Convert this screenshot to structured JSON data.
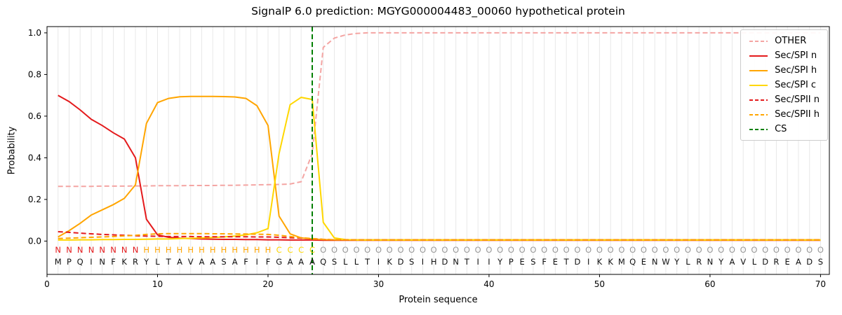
{
  "chart_data": {
    "type": "line",
    "title": "SignalP 6.0 prediction: MGYG000004483_00060 hypothetical protein",
    "xlabel": "Protein sequence",
    "ylabel": "Probability",
    "xlim": [
      0,
      70.8
    ],
    "ylim": [
      -0.16,
      1.03
    ],
    "xticks": [
      0,
      10,
      20,
      30,
      40,
      50,
      60,
      70
    ],
    "yticks": [
      0.0,
      0.2,
      0.4,
      0.6,
      0.8,
      1.0
    ],
    "grid": "vertical-line-per-residue",
    "legend_position": "upper-right",
    "x": [
      1,
      2,
      3,
      4,
      5,
      6,
      7,
      8,
      9,
      10,
      11,
      12,
      13,
      14,
      15,
      16,
      17,
      18,
      19,
      20,
      21,
      22,
      23,
      24,
      25,
      26,
      27,
      28,
      29,
      30,
      31,
      32,
      33,
      34,
      35,
      36,
      37,
      38,
      39,
      40,
      41,
      42,
      43,
      44,
      45,
      46,
      47,
      48,
      49,
      50,
      51,
      52,
      53,
      54,
      55,
      56,
      57,
      58,
      59,
      60,
      61,
      62,
      63,
      64,
      65,
      66,
      67,
      68,
      69,
      70
    ],
    "series": [
      {
        "name": "OTHER",
        "color": "#f4a5a3",
        "style": "dashed",
        "values": [
          0.263,
          0.263,
          0.263,
          0.263,
          0.264,
          0.264,
          0.264,
          0.265,
          0.265,
          0.266,
          0.266,
          0.266,
          0.267,
          0.267,
          0.267,
          0.268,
          0.268,
          0.269,
          0.27,
          0.271,
          0.272,
          0.274,
          0.285,
          0.42,
          0.93,
          0.975,
          0.99,
          0.997,
          1.0,
          1.0,
          1.0,
          1.0,
          1.0,
          1.0,
          1.0,
          1.0,
          1.0,
          1.0,
          1.0,
          1.0,
          1.0,
          1.0,
          1.0,
          1.0,
          1.0,
          1.0,
          1.0,
          1.0,
          1.0,
          1.0,
          1.0,
          1.0,
          1.0,
          1.0,
          1.0,
          1.0,
          1.0,
          1.0,
          1.0,
          1.0,
          1.0,
          1.0,
          1.0,
          1.0,
          1.0,
          1.0,
          1.0,
          1.0,
          1.0,
          1.0
        ]
      },
      {
        "name": "Sec/SPI n",
        "color": "#e41a1c",
        "style": "solid",
        "values": [
          0.7,
          0.67,
          0.63,
          0.585,
          0.555,
          0.52,
          0.49,
          0.4,
          0.105,
          0.03,
          0.018,
          0.014,
          0.012,
          0.01,
          0.009,
          0.008,
          0.008,
          0.007,
          0.007,
          0.006,
          0.006,
          0.005,
          0.005,
          0.005,
          0.004,
          0.004,
          0.004,
          0.004,
          0.004,
          0.004,
          0.004,
          0.004,
          0.004,
          0.004,
          0.004,
          0.004,
          0.004,
          0.004,
          0.004,
          0.004,
          0.004,
          0.004,
          0.004,
          0.004,
          0.004,
          0.004,
          0.004,
          0.004,
          0.004,
          0.004,
          0.004,
          0.004,
          0.004,
          0.004,
          0.004,
          0.004,
          0.004,
          0.004,
          0.004,
          0.004,
          0.004,
          0.004,
          0.004,
          0.004,
          0.004,
          0.004,
          0.004,
          0.004,
          0.004,
          0.004
        ]
      },
      {
        "name": "Sec/SPI h",
        "color": "#ffa500",
        "style": "solid",
        "values": [
          0.02,
          0.05,
          0.085,
          0.125,
          0.15,
          0.175,
          0.205,
          0.27,
          0.565,
          0.665,
          0.685,
          0.693,
          0.695,
          0.695,
          0.695,
          0.694,
          0.692,
          0.685,
          0.65,
          0.555,
          0.12,
          0.035,
          0.015,
          0.01,
          0.007,
          0.006,
          0.006,
          0.006,
          0.006,
          0.006,
          0.006,
          0.006,
          0.006,
          0.006,
          0.006,
          0.006,
          0.006,
          0.006,
          0.006,
          0.006,
          0.006,
          0.006,
          0.006,
          0.006,
          0.006,
          0.006,
          0.006,
          0.006,
          0.006,
          0.006,
          0.006,
          0.006,
          0.006,
          0.006,
          0.006,
          0.006,
          0.006,
          0.006,
          0.006,
          0.006,
          0.006,
          0.006,
          0.006,
          0.006,
          0.006,
          0.006,
          0.006,
          0.006,
          0.006,
          0.006
        ]
      },
      {
        "name": "Sec/SPI c",
        "color": "#ffd700",
        "style": "solid",
        "values": [
          0.005,
          0.005,
          0.006,
          0.006,
          0.007,
          0.007,
          0.008,
          0.008,
          0.009,
          0.01,
          0.01,
          0.012,
          0.013,
          0.015,
          0.017,
          0.02,
          0.024,
          0.03,
          0.04,
          0.06,
          0.42,
          0.655,
          0.69,
          0.68,
          0.09,
          0.015,
          0.007,
          0.005,
          0.005,
          0.005,
          0.005,
          0.005,
          0.005,
          0.005,
          0.005,
          0.005,
          0.005,
          0.005,
          0.005,
          0.005,
          0.005,
          0.005,
          0.005,
          0.005,
          0.005,
          0.005,
          0.005,
          0.005,
          0.005,
          0.005,
          0.005,
          0.005,
          0.005,
          0.005,
          0.005,
          0.005,
          0.005,
          0.005,
          0.005,
          0.005,
          0.005,
          0.005,
          0.005,
          0.005,
          0.005,
          0.005,
          0.005,
          0.005,
          0.005,
          0.005
        ]
      },
      {
        "name": "Sec/SPII n",
        "color": "#e41a1c",
        "style": "dashed",
        "values": [
          0.045,
          0.042,
          0.038,
          0.035,
          0.032,
          0.03,
          0.028,
          0.026,
          0.024,
          0.023,
          0.022,
          0.022,
          0.022,
          0.021,
          0.021,
          0.021,
          0.021,
          0.021,
          0.02,
          0.02,
          0.018,
          0.016,
          0.014,
          0.012,
          0.008,
          0.006,
          0.006,
          0.006,
          0.006,
          0.006,
          0.006,
          0.006,
          0.006,
          0.006,
          0.006,
          0.006,
          0.006,
          0.006,
          0.006,
          0.006,
          0.006,
          0.006,
          0.006,
          0.006,
          0.006,
          0.006,
          0.006,
          0.006,
          0.006,
          0.006,
          0.006,
          0.006,
          0.006,
          0.006,
          0.006,
          0.006,
          0.006,
          0.006,
          0.006,
          0.006,
          0.006,
          0.006,
          0.006,
          0.006,
          0.006,
          0.006,
          0.006,
          0.006,
          0.006,
          0.006
        ]
      },
      {
        "name": "Sec/SPII h",
        "color": "#ffa500",
        "style": "dashed",
        "values": [
          0.012,
          0.014,
          0.016,
          0.018,
          0.02,
          0.022,
          0.025,
          0.028,
          0.032,
          0.035,
          0.036,
          0.036,
          0.036,
          0.036,
          0.035,
          0.035,
          0.034,
          0.034,
          0.033,
          0.032,
          0.028,
          0.022,
          0.016,
          0.012,
          0.008,
          0.006,
          0.006,
          0.006,
          0.006,
          0.006,
          0.006,
          0.006,
          0.006,
          0.006,
          0.006,
          0.006,
          0.006,
          0.006,
          0.006,
          0.006,
          0.006,
          0.006,
          0.006,
          0.006,
          0.006,
          0.006,
          0.006,
          0.006,
          0.006,
          0.006,
          0.006,
          0.006,
          0.006,
          0.006,
          0.006,
          0.006,
          0.006,
          0.006,
          0.006,
          0.006,
          0.006,
          0.006,
          0.006,
          0.006,
          0.006,
          0.006,
          0.006,
          0.006,
          0.006,
          0.006
        ]
      }
    ],
    "cs_marker": {
      "name": "CS",
      "x": 24,
      "color": "#008000",
      "style": "dashed"
    },
    "sequence": "MPQINFKRYLTAVAASAFIFGAAAQSLLTIKDSIHDNTIIYPESFETDIKKMQENWYLRNYAVLDREADS",
    "region_labels": "NNNNNNNNHHHHHHHHHHHHCCCCOOOOOOOOOOOOOOOOOOOOOOOOOOOOOOOOOOOOOOOOOOOOOO",
    "region_colors": {
      "N": "#e41a1c",
      "H": "#ffa500",
      "C": "#ffd700",
      "O": "#999999"
    },
    "style": {
      "grid_color": "#e8e8e8",
      "axis_color": "#000000",
      "sequence_color": "#111111",
      "background": "#ffffff"
    }
  }
}
